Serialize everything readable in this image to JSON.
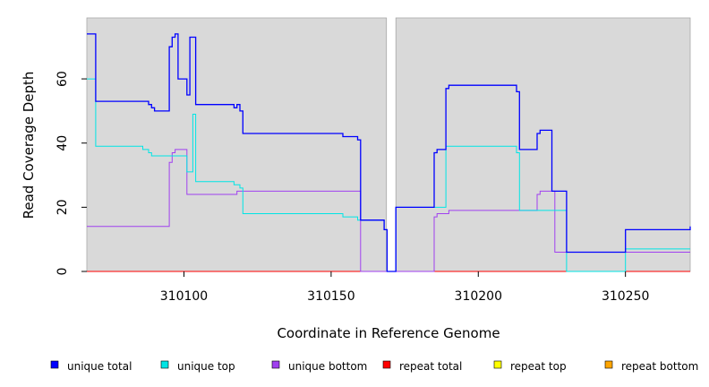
{
  "chart_data": {
    "type": "line",
    "step": true,
    "xlabel": "Coordinate in Reference Genome",
    "ylabel": "Read Coverage Depth",
    "xlim": [
      310067,
      310272
    ],
    "ylim": [
      0,
      79
    ],
    "xticks": [
      310100,
      310150,
      310200,
      310250
    ],
    "yticks": [
      0,
      20,
      40,
      60
    ],
    "gap": [
      310168.8,
      310172
    ],
    "background": "#d9d9d9",
    "series": [
      {
        "name": "unique total",
        "color": "#0000ff",
        "x": [
          310067,
          310070,
          310088,
          310089,
          310090,
          310095,
          310096,
          310097,
          310098,
          310101,
          310102,
          310104,
          310105,
          310117,
          310118,
          310119,
          310120,
          310154,
          310159,
          310160,
          310168,
          310169,
          310172,
          310185,
          310186,
          310189,
          310190,
          310213,
          310214,
          310220,
          310221,
          310225,
          310230,
          310250,
          310272
        ],
        "y": [
          74,
          53,
          52,
          51,
          50,
          70,
          73,
          74,
          60,
          55,
          73,
          52,
          52,
          51,
          52,
          50,
          43,
          42,
          41,
          16,
          13,
          0,
          20,
          37,
          38,
          57,
          58,
          56,
          38,
          43,
          44,
          25,
          6,
          13,
          14
        ]
      },
      {
        "name": "unique top",
        "color": "#00e5e5",
        "x": [
          310067,
          310070,
          310086,
          310088,
          310089,
          310095,
          310098,
          310101,
          310103,
          310104,
          310117,
          310119,
          310120,
          310154,
          310155,
          310159,
          310160,
          310168,
          310169,
          310172,
          310189,
          310213,
          310214,
          310230,
          310250,
          310272
        ],
        "y": [
          60,
          39,
          38,
          37,
          36,
          36,
          36,
          31,
          49,
          28,
          27,
          26,
          18,
          17,
          17,
          16,
          16,
          13,
          0,
          20,
          39,
          37,
          19,
          0,
          7,
          7
        ]
      },
      {
        "name": "unique bottom",
        "color": "#a040f0",
        "x": [
          310067,
          310095,
          310096,
          310097,
          310101,
          310118,
          310160,
          310169,
          310172,
          310185,
          310186,
          310190,
          310220,
          310221,
          310226,
          310272
        ],
        "y": [
          14,
          34,
          37,
          38,
          24,
          25,
          0,
          0,
          0,
          17,
          18,
          19,
          24,
          25,
          6,
          6
        ]
      },
      {
        "name": "repeat total",
        "color": "#ff0000",
        "x": [
          310067,
          310272
        ],
        "y": [
          0,
          0
        ]
      },
      {
        "name": "repeat top",
        "color": "#ffff00",
        "x": [
          310067,
          310272
        ],
        "y": [
          0,
          0
        ]
      },
      {
        "name": "repeat bottom",
        "color": "#ffa500",
        "x": [
          310067,
          310272
        ],
        "y": [
          0,
          0
        ]
      }
    ],
    "legend": "bottom"
  }
}
